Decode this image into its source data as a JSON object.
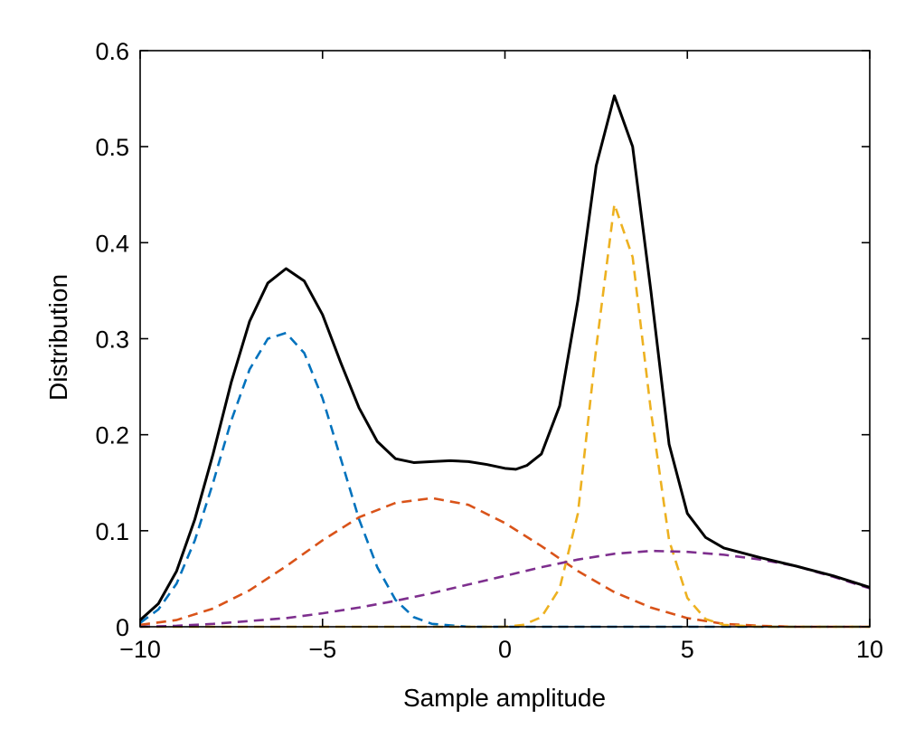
{
  "chart_data": {
    "type": "line",
    "xlabel": "Sample amplitude",
    "ylabel": "Distribution",
    "xlim": [
      -10,
      10
    ],
    "ylim": [
      0,
      0.6
    ],
    "x_ticks": [
      -10,
      -5,
      0,
      5,
      10
    ],
    "x_tick_labels": [
      "−10",
      "−5",
      "0",
      "5",
      "10"
    ],
    "y_ticks": [
      0,
      0.1,
      0.2,
      0.3,
      0.4,
      0.5,
      0.6
    ],
    "y_tick_labels": [
      "0",
      "0.1",
      "0.2",
      "0.3",
      "0.4",
      "0.5",
      "0.6"
    ],
    "grid": false,
    "legend": "none",
    "series": [
      {
        "style": "dashed",
        "color": "#0072BD",
        "points": [
          [
            -10,
            0.004
          ],
          [
            -9.5,
            0.018
          ],
          [
            -9,
            0.045
          ],
          [
            -8.5,
            0.09
          ],
          [
            -8,
            0.15
          ],
          [
            -7.5,
            0.215
          ],
          [
            -7,
            0.268
          ],
          [
            -6.5,
            0.3
          ],
          [
            -6,
            0.306
          ],
          [
            -5.5,
            0.285
          ],
          [
            -5,
            0.238
          ],
          [
            -4.5,
            0.175
          ],
          [
            -4,
            0.112
          ],
          [
            -3.5,
            0.062
          ],
          [
            -3,
            0.028
          ],
          [
            -2.5,
            0.01
          ],
          [
            -2,
            0.003
          ],
          [
            -1,
            0
          ],
          [
            0,
            0
          ],
          [
            5,
            0
          ],
          [
            10,
            0
          ]
        ]
      },
      {
        "style": "dashed",
        "color": "#D95319",
        "points": [
          [
            -10,
            0.002
          ],
          [
            -9,
            0.007
          ],
          [
            -8,
            0.019
          ],
          [
            -7,
            0.038
          ],
          [
            -6,
            0.063
          ],
          [
            -5,
            0.09
          ],
          [
            -4,
            0.114
          ],
          [
            -3,
            0.129
          ],
          [
            -2,
            0.134
          ],
          [
            -1,
            0.127
          ],
          [
            0,
            0.108
          ],
          [
            1,
            0.084
          ],
          [
            2,
            0.058
          ],
          [
            3,
            0.036
          ],
          [
            4,
            0.02
          ],
          [
            5,
            0.009
          ],
          [
            6,
            0.003
          ],
          [
            7,
            0.001
          ],
          [
            8,
            0
          ],
          [
            10,
            0
          ]
        ]
      },
      {
        "style": "dashed",
        "color": "#EDB120",
        "points": [
          [
            -10,
            0
          ],
          [
            0,
            0
          ],
          [
            0.5,
            0.002
          ],
          [
            1,
            0.01
          ],
          [
            1.5,
            0.04
          ],
          [
            2,
            0.118
          ],
          [
            2.5,
            0.29
          ],
          [
            3,
            0.44
          ],
          [
            3.5,
            0.385
          ],
          [
            4,
            0.225
          ],
          [
            4.5,
            0.09
          ],
          [
            5,
            0.03
          ],
          [
            5.5,
            0.008
          ],
          [
            6,
            0.002
          ],
          [
            7,
            0
          ],
          [
            10,
            0
          ]
        ]
      },
      {
        "style": "dashed",
        "color": "#7E2F8E",
        "points": [
          [
            -10,
            0.0
          ],
          [
            -9,
            0.001
          ],
          [
            -8,
            0.003
          ],
          [
            -7,
            0.006
          ],
          [
            -6,
            0.009
          ],
          [
            -5,
            0.014
          ],
          [
            -4,
            0.02
          ],
          [
            -3,
            0.027
          ],
          [
            -2,
            0.035
          ],
          [
            -1,
            0.044
          ],
          [
            0,
            0.053
          ],
          [
            1,
            0.062
          ],
          [
            2,
            0.07
          ],
          [
            3,
            0.076
          ],
          [
            4,
            0.079
          ],
          [
            5,
            0.078
          ],
          [
            6,
            0.075
          ],
          [
            7,
            0.07
          ],
          [
            8,
            0.063
          ],
          [
            9,
            0.052
          ],
          [
            10,
            0.04
          ]
        ]
      },
      {
        "style": "solid",
        "color": "#000000",
        "points": [
          [
            -10,
            0.007
          ],
          [
            -9.5,
            0.024
          ],
          [
            -9,
            0.058
          ],
          [
            -8.5,
            0.112
          ],
          [
            -8,
            0.18
          ],
          [
            -7.5,
            0.255
          ],
          [
            -7,
            0.318
          ],
          [
            -6.5,
            0.358
          ],
          [
            -6,
            0.373
          ],
          [
            -5.5,
            0.36
          ],
          [
            -5,
            0.325
          ],
          [
            -4.5,
            0.275
          ],
          [
            -4,
            0.228
          ],
          [
            -3.5,
            0.193
          ],
          [
            -3,
            0.175
          ],
          [
            -2.5,
            0.171
          ],
          [
            -2,
            0.172
          ],
          [
            -1.5,
            0.173
          ],
          [
            -1,
            0.172
          ],
          [
            -0.5,
            0.169
          ],
          [
            0,
            0.165
          ],
          [
            0.3,
            0.164
          ],
          [
            0.6,
            0.168
          ],
          [
            1,
            0.18
          ],
          [
            1.5,
            0.23
          ],
          [
            2,
            0.34
          ],
          [
            2.5,
            0.48
          ],
          [
            3,
            0.553
          ],
          [
            3.5,
            0.5
          ],
          [
            4,
            0.35
          ],
          [
            4.5,
            0.19
          ],
          [
            5,
            0.118
          ],
          [
            5.5,
            0.093
          ],
          [
            6,
            0.082
          ],
          [
            7,
            0.072
          ],
          [
            8,
            0.063
          ],
          [
            9,
            0.053
          ],
          [
            10,
            0.041
          ]
        ]
      }
    ]
  }
}
